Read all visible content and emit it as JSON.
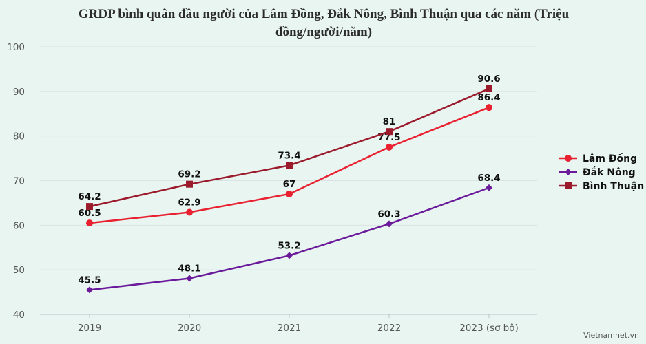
{
  "chart_data": {
    "type": "line",
    "title": "GRDP bình quân đầu người của Lâm Đồng, Đắk Nông, Bình Thuận qua các năm (Triệu đồng/người/năm)",
    "categories": [
      "2019",
      "2020",
      "2021",
      "2022",
      "2023 (sơ bộ)"
    ],
    "ylim": [
      40,
      100
    ],
    "yticks": [
      40,
      50,
      60,
      70,
      80,
      90,
      100
    ],
    "grid": true,
    "legend": "right",
    "series": [
      {
        "name": "Lâm Đồng",
        "color": "#e8202f",
        "marker": "circle",
        "values": [
          60.5,
          62.9,
          67,
          77.5,
          86.4
        ]
      },
      {
        "name": "Đắk Nông",
        "color": "#6a1a9a",
        "marker": "diamond",
        "values": [
          45.5,
          48.1,
          53.2,
          60.3,
          68.4
        ]
      },
      {
        "name": "Bình Thuận",
        "color": "#9b1b2c",
        "marker": "square",
        "values": [
          64.2,
          69.2,
          73.4,
          81,
          90.6
        ]
      }
    ]
  },
  "credit": "Vietnamnet.vn"
}
